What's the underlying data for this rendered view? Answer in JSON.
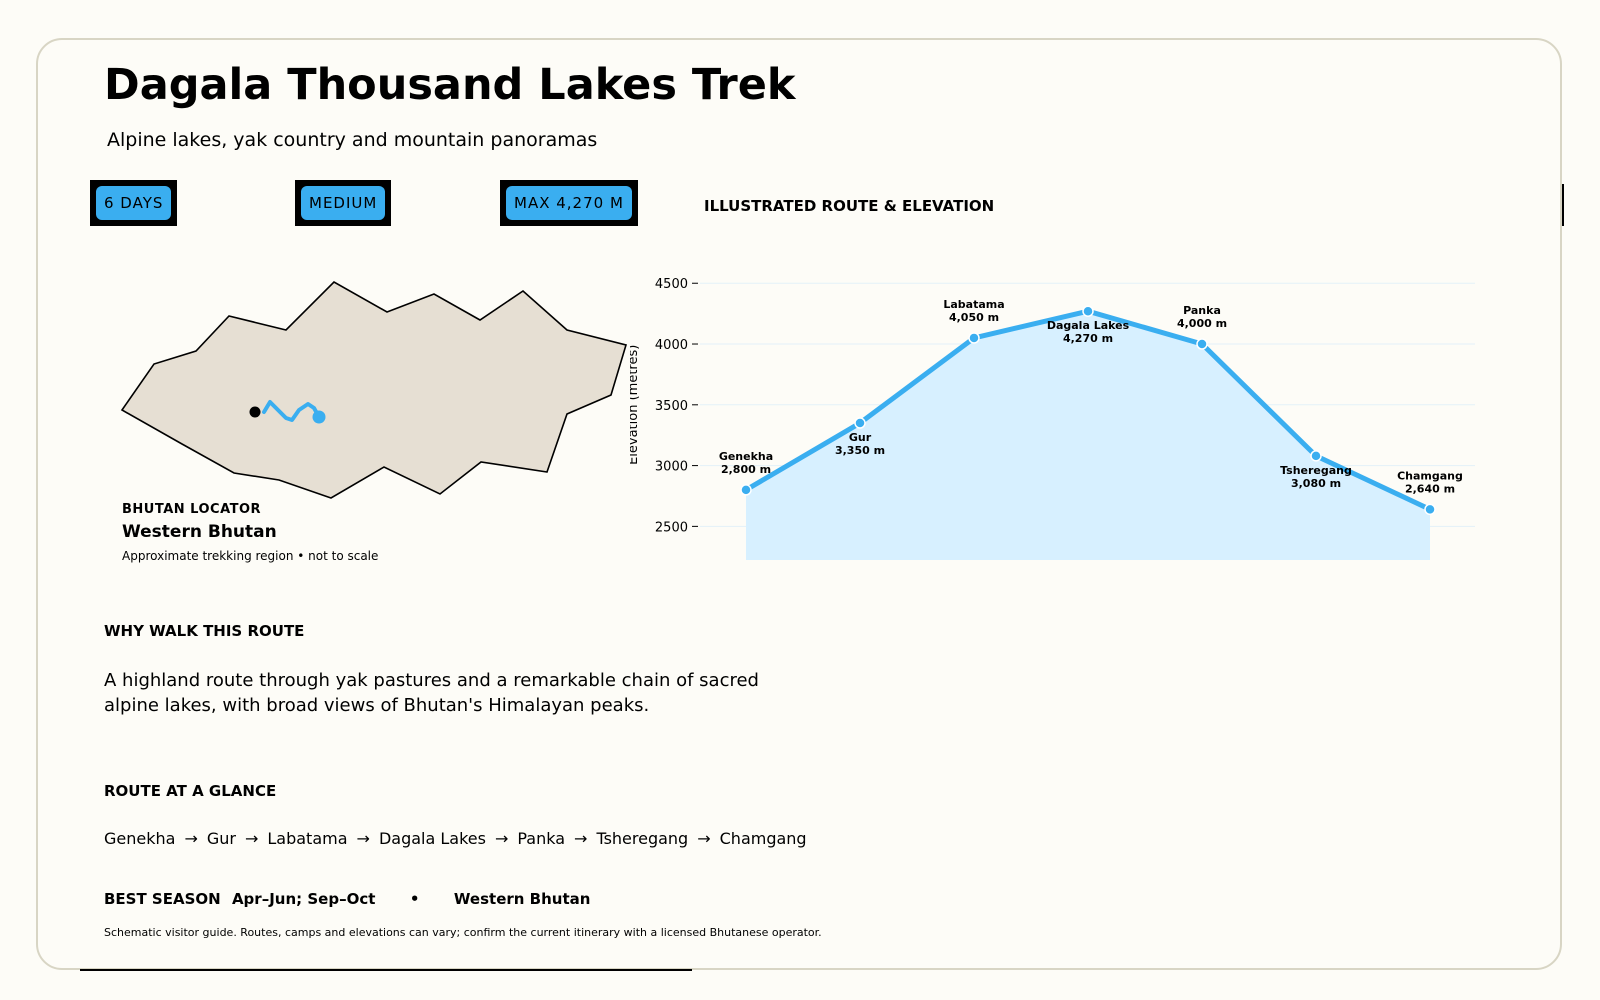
{
  "header": {
    "title": "Dagala Thousand Lakes Trek",
    "subtitle": "Alpine lakes, yak country and mountain panoramas"
  },
  "badges": [
    "6 DAYS",
    "MEDIUM",
    "MAX 4,270 M"
  ],
  "route_section_label": "ILLUSTRATED ROUTE & ELEVATION",
  "locator": {
    "kicker": "BHUTAN LOCATOR",
    "region": "Western Bhutan",
    "note": "Approximate trekking region • not to scale"
  },
  "why": {
    "heading": "WHY WALK THIS ROUTE",
    "text": "A highland route through yak pastures and a remarkable chain of sacred alpine lakes, with broad views of Bhutan's Himalayan peaks."
  },
  "glance": {
    "heading": "ROUTE AT A GLANCE",
    "stops": [
      "Genekha",
      "Gur",
      "Labatama",
      "Dagala Lakes",
      "Panka",
      "Tsheregang",
      "Chamgang"
    ],
    "arrow": "→"
  },
  "season": {
    "label": "BEST SEASON",
    "value": "Apr–Jun; Sep–Oct",
    "separator": "•",
    "region": "Western Bhutan"
  },
  "disclaimer": "Schematic visitor guide. Routes, camps and elevations can vary; confirm the current itinerary with a licensed Bhutanese operator.",
  "colors": {
    "accent": "#3aaef0",
    "fill": "#d7f0ff",
    "map_land": "#e6dfd3",
    "grid": "#e3f1f8"
  },
  "chart_data": {
    "type": "area",
    "ylabel": "Elevation (metres)",
    "yticks": [
      2500,
      3000,
      3500,
      4000,
      4500
    ],
    "ylim": [
      2100,
      4650
    ],
    "grid": true,
    "points": [
      {
        "name": "Genekha",
        "value": 2800,
        "label": "2,800 m",
        "label_pos": "above"
      },
      {
        "name": "Gur",
        "value": 3350,
        "label": "3,350 m",
        "label_pos": "below"
      },
      {
        "name": "Labatama",
        "value": 4050,
        "label": "4,050 m",
        "label_pos": "above"
      },
      {
        "name": "Dagala Lakes",
        "value": 4270,
        "label": "4,270 m",
        "label_pos": "below"
      },
      {
        "name": "Panka",
        "value": 4000,
        "label": "4,000 m",
        "label_pos": "above"
      },
      {
        "name": "Tsheregang",
        "value": 3080,
        "label": "3,080 m",
        "label_pos": "below"
      },
      {
        "name": "Chamgang",
        "value": 2640,
        "label": "2,640 m",
        "label_pos": "above"
      }
    ]
  }
}
